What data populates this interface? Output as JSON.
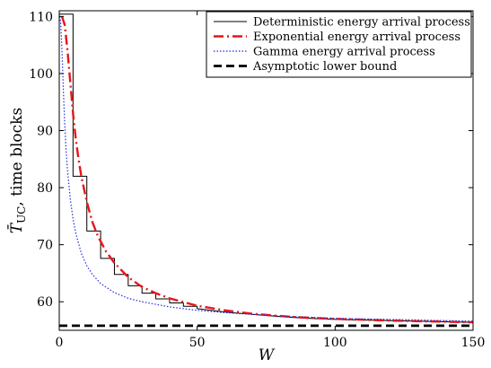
{
  "chart_data": {
    "type": "line",
    "title": "",
    "xlabel": "W",
    "ylabel": "T̄UC, time blocks",
    "ylabel_parts": {
      "symbol": "T̄",
      "subscript": "UC",
      "rest": ", time blocks"
    },
    "xlim": [
      0,
      150
    ],
    "ylim": [
      55,
      111
    ],
    "xticks": [
      0,
      50,
      100,
      150
    ],
    "yticks": [
      60,
      70,
      80,
      90,
      100,
      110
    ],
    "xtick_labels": [
      "0",
      "50",
      "100",
      "150"
    ],
    "ytick_labels": [
      "60",
      "70",
      "80",
      "90",
      "100",
      "110"
    ],
    "grid": false,
    "legend_position": "top-right",
    "series": [
      {
        "name": "Deterministic energy arrival process",
        "style": "solid",
        "color": "#000000",
        "x": [
          0,
          5,
          5,
          10,
          10,
          15,
          15,
          20,
          20,
          25,
          25,
          30,
          30,
          35,
          35,
          40,
          40,
          45,
          45,
          50,
          50,
          60,
          70,
          80,
          90,
          100,
          110,
          120,
          130,
          140,
          150
        ],
        "y": [
          110.4,
          110.4,
          82.0,
          82.0,
          72.4,
          72.4,
          67.6,
          67.6,
          64.8,
          64.8,
          62.8,
          62.8,
          61.5,
          61.5,
          60.5,
          60.5,
          59.8,
          59.8,
          59.2,
          59.2,
          58.8,
          58.2,
          57.8,
          57.4,
          57.1,
          56.9,
          56.8,
          56.7,
          56.6,
          56.5,
          56.4
        ]
      },
      {
        "name": "Exponential energy arrival process",
        "style": "dashdot",
        "color": "#e8141a",
        "x": [
          1,
          2,
          3,
          4,
          5,
          6,
          7,
          8,
          10,
          12,
          14,
          17,
          20,
          25,
          30,
          35,
          40,
          50,
          60,
          70,
          80,
          90,
          100,
          120,
          140,
          150
        ],
        "y": [
          110.0,
          108.5,
          104.0,
          98.5,
          93.0,
          88.5,
          85.0,
          82.0,
          77.5,
          74.0,
          71.5,
          68.8,
          66.8,
          64.3,
          62.6,
          61.5,
          60.6,
          59.3,
          58.5,
          57.9,
          57.5,
          57.2,
          57.0,
          56.7,
          56.5,
          56.4
        ]
      },
      {
        "name": "Gamma energy arrival process",
        "style": "dotted",
        "color": "#1f2bd6",
        "x": [
          0.2,
          0.5,
          1,
          1.5,
          2,
          2.5,
          3,
          4,
          5,
          6,
          8,
          10,
          12,
          15,
          20,
          25,
          30,
          40,
          50,
          60,
          80,
          100,
          120,
          150
        ],
        "y": [
          110.0,
          109.0,
          104.0,
          97.0,
          91.0,
          86.5,
          83.0,
          78.0,
          74.5,
          72.0,
          68.5,
          66.3,
          64.8,
          63.2,
          61.6,
          60.6,
          60.0,
          59.1,
          58.5,
          58.1,
          57.5,
          57.1,
          56.9,
          56.6
        ]
      },
      {
        "name": "Asymptotic lower bound",
        "style": "dashed",
        "color": "#000000",
        "x": [
          0,
          150
        ],
        "y": [
          55.8,
          55.8
        ]
      }
    ]
  }
}
